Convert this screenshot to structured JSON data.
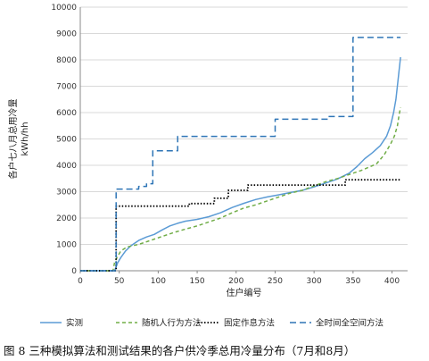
{
  "caption": "图 8 三种模拟算法和测试结果的各户供冷季总用冷量分布（7月和8月）",
  "chart_data": {
    "type": "line",
    "xlabel": "住户编号",
    "ylabel": "各户七八月总用冷量",
    "ylabel_unit": "kWh/hh",
    "xlim": [
      0,
      420
    ],
    "ylim": [
      0,
      10000
    ],
    "xticks": [
      0,
      50,
      100,
      150,
      200,
      250,
      300,
      350,
      400
    ],
    "yticks": [
      0,
      1000,
      2000,
      3000,
      4000,
      5000,
      6000,
      7000,
      8000,
      9000,
      10000
    ],
    "grid": "horizontal",
    "legend_position": "bottom",
    "series": [
      {
        "name": "实测",
        "color": "#5b9bd5",
        "dash": "solid",
        "points": [
          [
            0,
            0
          ],
          [
            44,
            0
          ],
          [
            46,
            150
          ],
          [
            48,
            300
          ],
          [
            52,
            500
          ],
          [
            58,
            750
          ],
          [
            65,
            950
          ],
          [
            75,
            1150
          ],
          [
            85,
            1280
          ],
          [
            95,
            1380
          ],
          [
            105,
            1550
          ],
          [
            115,
            1700
          ],
          [
            125,
            1800
          ],
          [
            135,
            1880
          ],
          [
            150,
            1950
          ],
          [
            165,
            2050
          ],
          [
            180,
            2200
          ],
          [
            195,
            2400
          ],
          [
            210,
            2560
          ],
          [
            225,
            2700
          ],
          [
            240,
            2800
          ],
          [
            255,
            2880
          ],
          [
            270,
            2970
          ],
          [
            285,
            3050
          ],
          [
            300,
            3180
          ],
          [
            315,
            3330
          ],
          [
            330,
            3480
          ],
          [
            345,
            3700
          ],
          [
            355,
            3950
          ],
          [
            365,
            4250
          ],
          [
            375,
            4480
          ],
          [
            385,
            4750
          ],
          [
            393,
            5100
          ],
          [
            398,
            5500
          ],
          [
            402,
            6000
          ],
          [
            405,
            6500
          ],
          [
            408,
            7300
          ],
          [
            411,
            8100
          ]
        ]
      },
      {
        "name": "随机人行为方法",
        "color": "#70ad47",
        "dash": "4,3",
        "points": [
          [
            0,
            0
          ],
          [
            42,
            0
          ],
          [
            44,
            300
          ],
          [
            47,
            500
          ],
          [
            52,
            750
          ],
          [
            60,
            900
          ],
          [
            75,
            1000
          ],
          [
            90,
            1150
          ],
          [
            105,
            1300
          ],
          [
            120,
            1450
          ],
          [
            135,
            1580
          ],
          [
            150,
            1700
          ],
          [
            165,
            1850
          ],
          [
            180,
            2000
          ],
          [
            195,
            2200
          ],
          [
            210,
            2380
          ],
          [
            225,
            2500
          ],
          [
            240,
            2650
          ],
          [
            255,
            2800
          ],
          [
            270,
            2950
          ],
          [
            285,
            3050
          ],
          [
            300,
            3220
          ],
          [
            315,
            3380
          ],
          [
            330,
            3500
          ],
          [
            345,
            3650
          ],
          [
            360,
            3800
          ],
          [
            372,
            3950
          ],
          [
            380,
            4050
          ],
          [
            390,
            4400
          ],
          [
            398,
            4800
          ],
          [
            403,
            5100
          ],
          [
            407,
            5500
          ],
          [
            409,
            5900
          ],
          [
            411,
            6200
          ]
        ]
      },
      {
        "name": "固定作息方法",
        "color": "#000000",
        "dash": "1.5,2",
        "points": [
          [
            0,
            0
          ],
          [
            46,
            0
          ],
          [
            46,
            2450
          ],
          [
            140,
            2450
          ],
          [
            140,
            2550
          ],
          [
            172,
            2550
          ],
          [
            172,
            2750
          ],
          [
            190,
            2750
          ],
          [
            190,
            3050
          ],
          [
            215,
            3050
          ],
          [
            215,
            3250
          ],
          [
            340,
            3250
          ],
          [
            340,
            3450
          ],
          [
            411,
            3450
          ]
        ]
      },
      {
        "name": "全时间全空间方法",
        "color": "#2e75b6",
        "dash": "7,4",
        "points": [
          [
            0,
            0
          ],
          [
            46,
            0
          ],
          [
            46,
            3100
          ],
          [
            75,
            3100
          ],
          [
            75,
            3200
          ],
          [
            85,
            3200
          ],
          [
            85,
            3300
          ],
          [
            93,
            3300
          ],
          [
            93,
            4550
          ],
          [
            125,
            4550
          ],
          [
            125,
            5100
          ],
          [
            250,
            5100
          ],
          [
            250,
            5750
          ],
          [
            318,
            5750
          ],
          [
            318,
            5850
          ],
          [
            350,
            5850
          ],
          [
            350,
            8850
          ],
          [
            411,
            8850
          ]
        ]
      }
    ]
  }
}
